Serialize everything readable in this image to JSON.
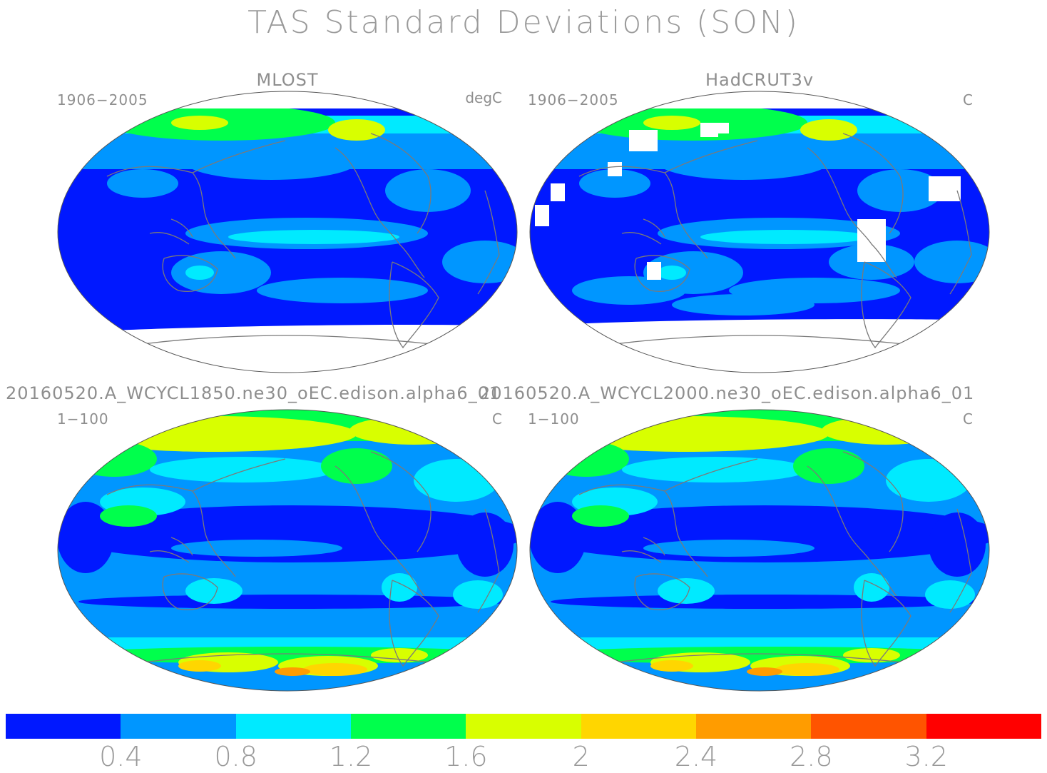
{
  "title": "TAS Standard Deviations (SON)",
  "panels": [
    {
      "title": "MLOST",
      "left": "1906−2005",
      "right": "degC",
      "kind": "obs1"
    },
    {
      "title": "HadCRUT3v",
      "left": "1906−2005",
      "right": "C",
      "kind": "obs2"
    },
    {
      "title": "20160520.A_WCYCL1850.ne30_oEC.edison.alpha6_01",
      "left": "1−100",
      "right": "C",
      "kind": "model1"
    },
    {
      "title": "20160520.A_WCYCL2000.ne30_oEC.edison.alpha6_01",
      "left": "1−100",
      "right": "C",
      "kind": "model2"
    }
  ],
  "colorbar": {
    "colors": [
      "#0018ff",
      "#0096ff",
      "#00eaff",
      "#00ff4c",
      "#d8ff00",
      "#ffd600",
      "#ff9c00",
      "#ff5400",
      "#ff0000"
    ],
    "labels": [
      "0.4",
      "0.8",
      "1.2",
      "1.6",
      "2",
      "2.4",
      "2.8",
      "3.2"
    ]
  }
}
